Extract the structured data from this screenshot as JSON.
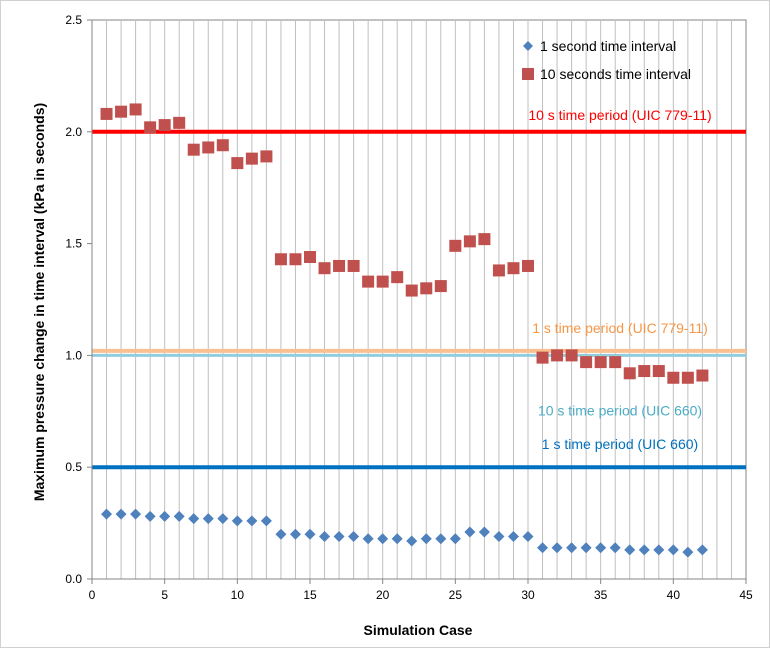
{
  "chart_data": {
    "type": "scatter",
    "xlabel": "Simulation Case",
    "ylabel": "Maximum pressure change in time interval (kPa in seconds)",
    "xlim": [
      0,
      45
    ],
    "ylim": [
      0.0,
      2.5
    ],
    "x_ticks": [
      "0",
      "5",
      "10",
      "15",
      "20",
      "25",
      "30",
      "35",
      "40",
      "45"
    ],
    "y_ticks": [
      "0.0",
      "0.5",
      "1.0",
      "1.5",
      "2.0",
      "2.5"
    ],
    "vertical_grid": "every 1 case",
    "legend_position": "top-right",
    "series": [
      {
        "name": "1 second time interval",
        "marker": "diamond",
        "color": "#4f81bd",
        "x": [
          1,
          2,
          3,
          4,
          5,
          6,
          7,
          8,
          9,
          10,
          11,
          12,
          13,
          14,
          15,
          16,
          17,
          18,
          19,
          20,
          21,
          22,
          23,
          24,
          25,
          26,
          27,
          28,
          29,
          30,
          31,
          32,
          33,
          34,
          35,
          36,
          37,
          38,
          39,
          40,
          41,
          42
        ],
        "values": [
          0.29,
          0.29,
          0.29,
          0.28,
          0.28,
          0.28,
          0.27,
          0.27,
          0.27,
          0.26,
          0.26,
          0.26,
          0.2,
          0.2,
          0.2,
          0.19,
          0.19,
          0.19,
          0.18,
          0.18,
          0.18,
          0.17,
          0.18,
          0.18,
          0.18,
          0.21,
          0.21,
          0.19,
          0.19,
          0.19,
          0.14,
          0.14,
          0.14,
          0.14,
          0.14,
          0.14,
          0.13,
          0.13,
          0.13,
          0.13,
          0.12,
          0.13
        ]
      },
      {
        "name": "10 seconds time interval",
        "marker": "square",
        "color": "#c0504d",
        "x": [
          1,
          2,
          3,
          4,
          5,
          6,
          7,
          8,
          9,
          10,
          11,
          12,
          13,
          14,
          15,
          16,
          17,
          18,
          19,
          20,
          21,
          22,
          23,
          24,
          25,
          26,
          27,
          28,
          29,
          30,
          31,
          32,
          33,
          34,
          35,
          36,
          37,
          38,
          39,
          40,
          41,
          42
        ],
        "values": [
          2.08,
          2.09,
          2.1,
          2.02,
          2.03,
          2.04,
          1.92,
          1.93,
          1.94,
          1.86,
          1.88,
          1.89,
          1.43,
          1.43,
          1.44,
          1.39,
          1.4,
          1.4,
          1.33,
          1.33,
          1.35,
          1.29,
          1.3,
          1.31,
          1.49,
          1.51,
          1.52,
          1.38,
          1.39,
          1.4,
          0.99,
          1.0,
          1.0,
          0.97,
          0.97,
          0.97,
          0.92,
          0.93,
          0.93,
          0.9,
          0.9,
          0.91
        ]
      }
    ],
    "reference_lines": [
      {
        "label": "10 s time period (UIC 779-11)",
        "value": 2.0,
        "color": "#ff0000",
        "label_color": "#ff0000"
      },
      {
        "label": "1 s time period (UIC 779-11)",
        "value": 1.02,
        "color": "#fac090",
        "label_color": "#f79646"
      },
      {
        "label": "10 s time period (UIC 660)",
        "value": 1.0,
        "color": "#93cddd",
        "label_color": "#4bacc6"
      },
      {
        "label": "1 s time period (UIC 660)",
        "value": 0.5,
        "color": "#0070c0",
        "label_color": "#0070c0"
      }
    ]
  }
}
